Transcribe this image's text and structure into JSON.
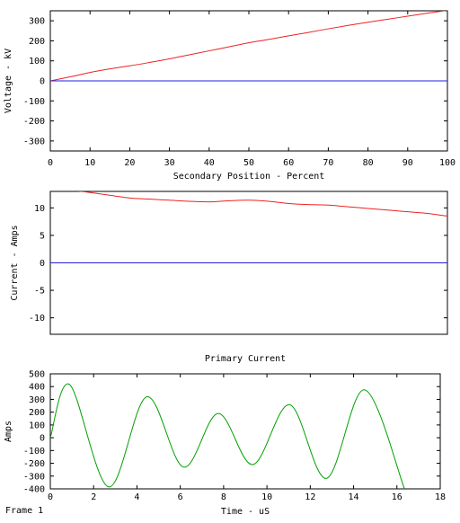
{
  "colors": {
    "red": "#ee2222",
    "blue": "#2222dd",
    "green": "#00a000",
    "axis": "#000000"
  },
  "footer": {
    "frame_label": "Frame 1"
  },
  "chart_data": [
    {
      "type": "line",
      "title": "",
      "xlabel": "Secondary Position - Percent",
      "ylabel": "Voltage - kV",
      "xlim": [
        0,
        100
      ],
      "ylim": [
        -350,
        350
      ],
      "xticks": [
        "0",
        "10",
        "20",
        "30",
        "40",
        "50",
        "60",
        "70",
        "80",
        "90",
        "100"
      ],
      "yticks": [
        "300",
        "200",
        "100",
        "0",
        "-100",
        "-200",
        "-300"
      ],
      "series": [
        {
          "color": "#ee2222",
          "x": [
            0,
            5,
            10,
            15,
            20,
            25,
            30,
            35,
            40,
            45,
            50,
            55,
            60,
            65,
            70,
            75,
            80,
            85,
            90,
            95,
            100
          ],
          "values": [
            0,
            20,
            42,
            60,
            75,
            92,
            110,
            130,
            150,
            170,
            190,
            207,
            225,
            242,
            260,
            277,
            293,
            308,
            323,
            338,
            352
          ]
        },
        {
          "color": "#2222dd",
          "x": [
            0,
            50,
            100
          ],
          "values": [
            0,
            0,
            0
          ]
        }
      ]
    },
    {
      "type": "line",
      "title": "",
      "xlabel": "",
      "ylabel": "Current - Amps",
      "xlim": [
        0,
        100
      ],
      "ylim": [
        -13,
        13
      ],
      "xticks": [],
      "yticks": [
        "10",
        "5",
        "0",
        "-5",
        "-10"
      ],
      "series": [
        {
          "color": "#ee2222",
          "x": [
            0,
            5,
            10,
            15,
            20,
            25,
            30,
            35,
            40,
            45,
            50,
            55,
            60,
            65,
            70,
            75,
            80,
            85,
            90,
            95,
            100
          ],
          "values": [
            13.2,
            13.2,
            12.8,
            12.3,
            11.8,
            11.6,
            11.4,
            11.2,
            11.1,
            11.3,
            11.4,
            11.2,
            10.8,
            10.6,
            10.5,
            10.2,
            9.9,
            9.6,
            9.3,
            9.0,
            8.5
          ]
        },
        {
          "color": "#2222dd",
          "x": [
            0,
            50,
            100
          ],
          "values": [
            0,
            0,
            0
          ]
        }
      ]
    },
    {
      "type": "line",
      "title": "Primary Current",
      "xlabel": "Time - uS",
      "ylabel": "Amps",
      "xlim": [
        0,
        18
      ],
      "ylim": [
        -400,
        500
      ],
      "xticks": [
        "0",
        "2",
        "4",
        "6",
        "8",
        "10",
        "12",
        "14",
        "16",
        "18"
      ],
      "yticks": [
        "500",
        "400",
        "300",
        "200",
        "100",
        "0",
        "-100",
        "-200",
        "-300",
        "-400"
      ],
      "series": [
        {
          "color": "#00a000",
          "x": [
            0,
            0.9,
            2.7,
            4.45,
            6.15,
            7.75,
            9.35,
            11.05,
            12.75,
            14.5,
            16.35
          ],
          "values": [
            0,
            415,
            -385,
            320,
            -230,
            190,
            -210,
            258,
            -318,
            375,
            -400
          ]
        }
      ]
    }
  ]
}
